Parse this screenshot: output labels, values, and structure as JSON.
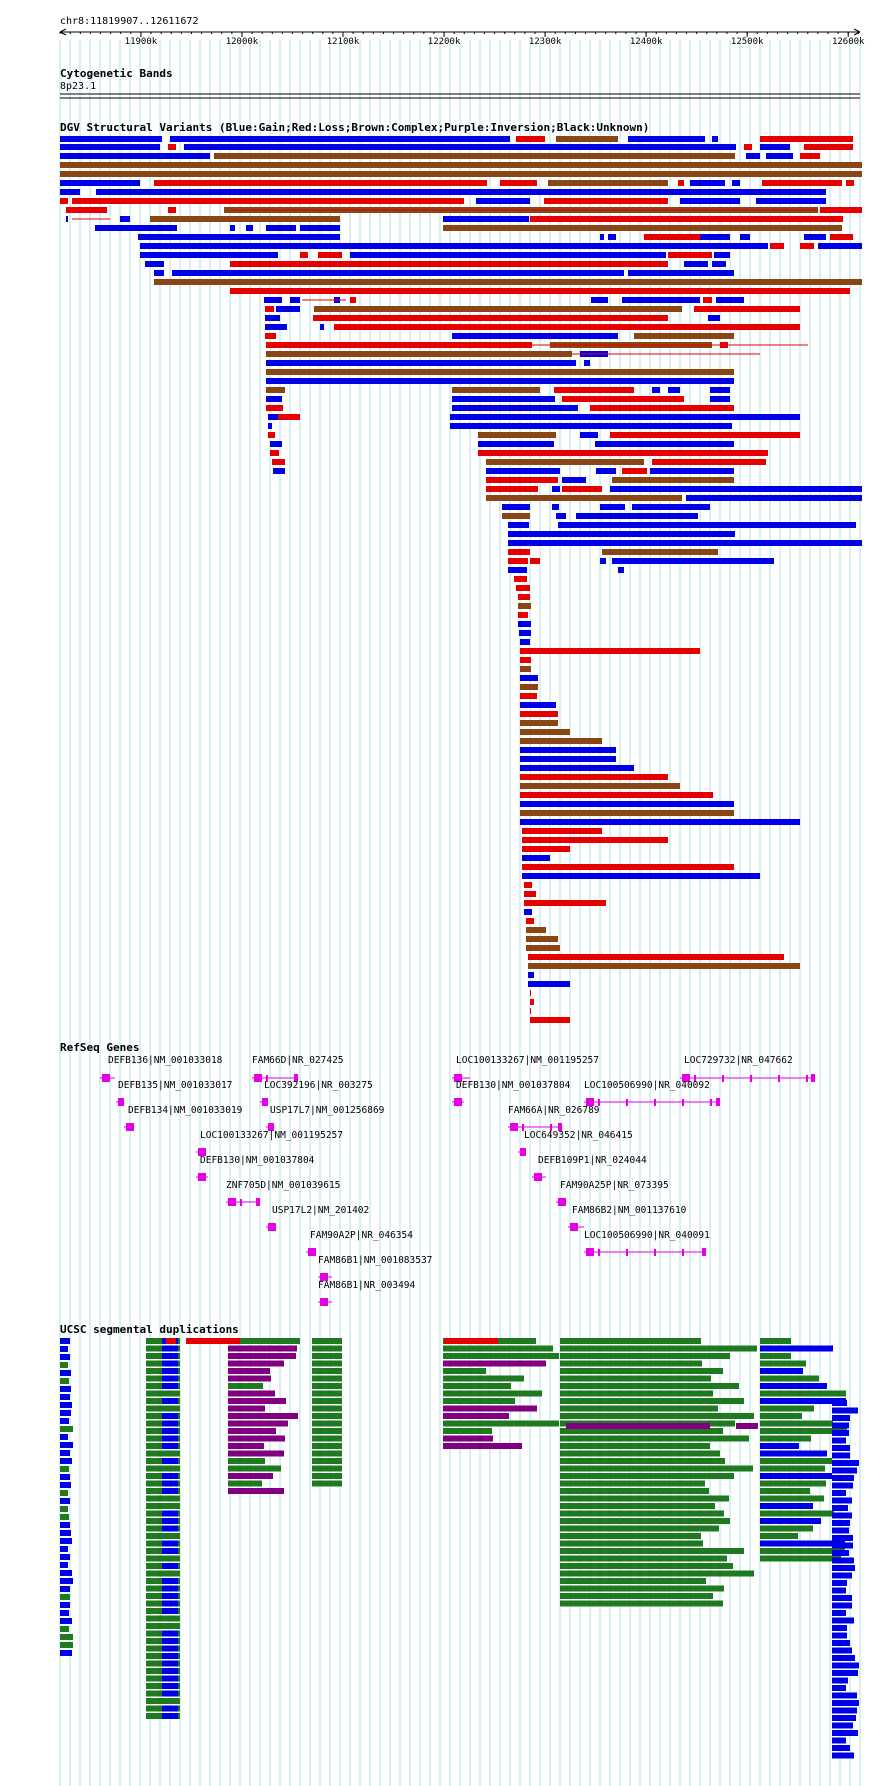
{
  "ruler": {
    "location": "chr8:11819907..12611672",
    "unit_start": 11819907,
    "unit_end": 12611672,
    "ticks": [
      {
        "pos": 11900000,
        "label": "11900k"
      },
      {
        "pos": 12000000,
        "label": "12000k"
      },
      {
        "pos": 12100000,
        "label": "12100k"
      },
      {
        "pos": 12200000,
        "label": "12200k"
      },
      {
        "pos": 12300000,
        "label": "12300k"
      },
      {
        "pos": 12400000,
        "label": "12400k"
      },
      {
        "pos": 12500000,
        "label": "12500k"
      },
      {
        "pos": 12600000,
        "label": "12600k"
      }
    ]
  },
  "tracks": {
    "cytoband": {
      "title": "Cytogenetic Bands",
      "band": "8p23.1"
    },
    "dgv": {
      "title": "DGV Structural Variants (Blue:Gain;Red:Loss;Brown:Complex;Purple:Inversion;Black:Unknown)",
      "colors": {
        "gain": "#0000e6",
        "loss": "#e60000",
        "complex": "#8b4513",
        "inversion": "#800080",
        "unknown": "#000000"
      }
    },
    "refseq": {
      "title": "RefSeq Genes",
      "color": "#e600e6",
      "genes": [
        {
          "label": "DEFB136|NM_001033018"
        },
        {
          "label": "FAM66D|NR_027425"
        },
        {
          "label": "LOC100133267|NM_001195257"
        },
        {
          "label": "LOC729732|NR_047662"
        },
        {
          "label": "DEFB135|NM_001033017"
        },
        {
          "label": "LOC392196|NR_003275"
        },
        {
          "label": "DEFB130|NM_001037804"
        },
        {
          "label": "LOC100506990|NR_040092"
        },
        {
          "label": "DEFB134|NM_001033019"
        },
        {
          "label": "USP17L7|NM_001256869"
        },
        {
          "label": "FAM66A|NR_026789"
        },
        {
          "label": "LOC100133267|NM_001195257"
        },
        {
          "label": "LOC649352|NR_046415"
        },
        {
          "label": "DEFB130|NM_001037804"
        },
        {
          "label": "DEFB109P1|NR_024044"
        },
        {
          "label": "ZNF705D|NM_001039615"
        },
        {
          "label": "FAM90A25P|NR_073395"
        },
        {
          "label": "USP17L2|NM_201402"
        },
        {
          "label": "FAM86B2|NM_001137610"
        },
        {
          "label": "FAM90A2P|NR_046354"
        },
        {
          "label": "LOC100506990|NR_040091"
        },
        {
          "label": "FAM86B1|NM_001083537"
        },
        {
          "label": "FAM86B1|NR_003494"
        }
      ]
    },
    "segdups": {
      "title": "UCSC segmental duplications",
      "colors": {
        "green": "#1f7a1f",
        "blue": "#0000e6",
        "purple": "#800080",
        "red": "#e60000"
      }
    }
  }
}
